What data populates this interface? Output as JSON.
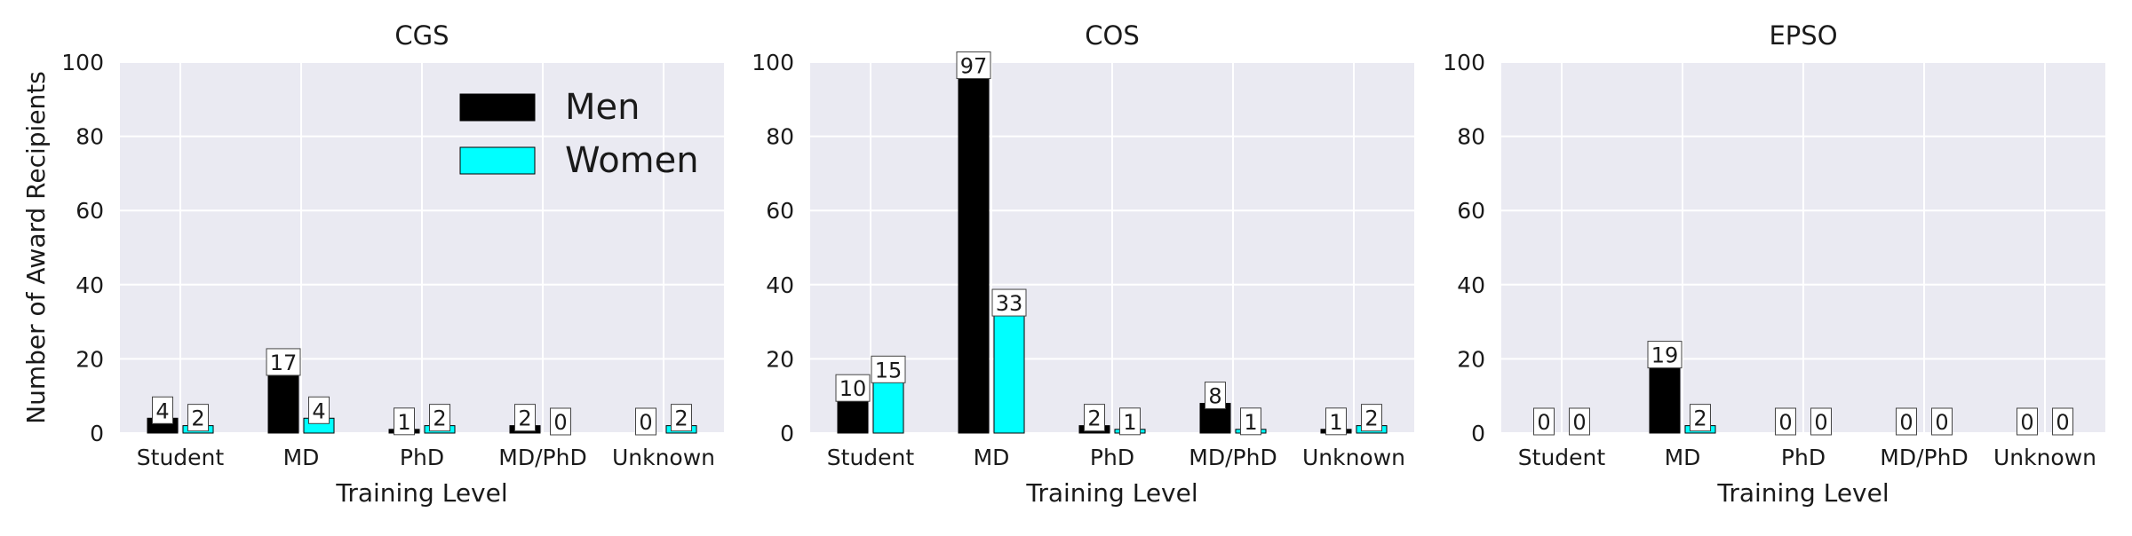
{
  "colors": {
    "men": "#000000",
    "women": "#00ffff",
    "plot_bg": "#eaeaf2",
    "grid": "#ffffff"
  },
  "legend": {
    "men_label": "Men",
    "women_label": "Women",
    "placement": "top-right of first panel"
  },
  "chart_data": [
    {
      "type": "bar",
      "title": "CGS",
      "xlabel": "Training Level",
      "ylabel": "Number of Award Recipients",
      "ylim": [
        0,
        100
      ],
      "yticks": [
        0,
        20,
        40,
        60,
        80,
        100
      ],
      "categories": [
        "Student",
        "MD",
        "PhD",
        "MD/PhD",
        "Unknown"
      ],
      "series": [
        {
          "name": "Men",
          "values": [
            4,
            17,
            1,
            2,
            0
          ]
        },
        {
          "name": "Women",
          "values": [
            2,
            4,
            2,
            0,
            2
          ]
        }
      ],
      "grid": true,
      "legend": true
    },
    {
      "type": "bar",
      "title": "COS",
      "xlabel": "Training Level",
      "ylim": [
        0,
        100
      ],
      "yticks": [
        0,
        20,
        40,
        60,
        80,
        100
      ],
      "categories": [
        "Student",
        "MD",
        "PhD",
        "MD/PhD",
        "Unknown"
      ],
      "series": [
        {
          "name": "Men",
          "values": [
            10,
            97,
            2,
            8,
            1
          ]
        },
        {
          "name": "Women",
          "values": [
            15,
            33,
            1,
            1,
            2
          ]
        }
      ],
      "grid": true
    },
    {
      "type": "bar",
      "title": "EPSO",
      "xlabel": "Training Level",
      "ylim": [
        0,
        100
      ],
      "yticks": [
        0,
        20,
        40,
        60,
        80,
        100
      ],
      "categories": [
        "Student",
        "MD",
        "PhD",
        "MD/PhD",
        "Unknown"
      ],
      "series": [
        {
          "name": "Men",
          "values": [
            0,
            19,
            0,
            0,
            0
          ]
        },
        {
          "name": "Women",
          "values": [
            0,
            2,
            0,
            0,
            0
          ]
        }
      ],
      "grid": true
    }
  ]
}
